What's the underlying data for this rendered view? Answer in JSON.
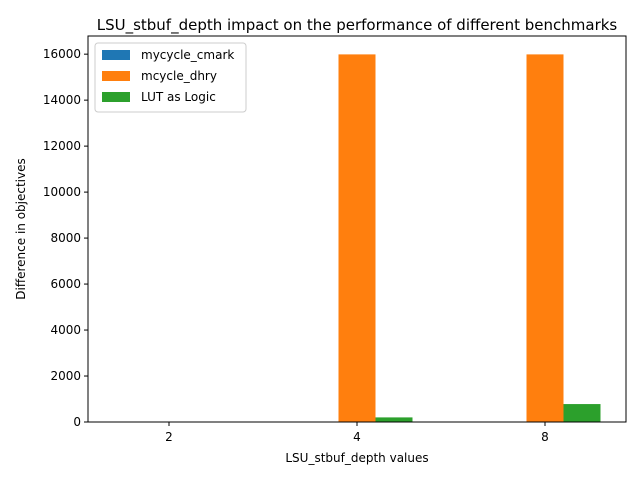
{
  "chart_data": {
    "type": "bar",
    "title": "LSU_stbuf_depth impact on the performance of different benchmarks",
    "xlabel": "LSU_stbuf_depth values",
    "ylabel": "Difference in objectives",
    "categories": [
      "2",
      "4",
      "8"
    ],
    "series": [
      {
        "name": "mycycle_cmark",
        "color": "#1f77b4",
        "values": [
          0,
          0,
          0
        ]
      },
      {
        "name": "mcycle_dhry",
        "color": "#ff7f0e",
        "values": [
          0,
          15990,
          15990
        ]
      },
      {
        "name": "LUT as Logic",
        "color": "#2ca02c",
        "values": [
          0,
          200,
          780
        ]
      }
    ],
    "ylim": [
      0,
      16790
    ],
    "yticks": [
      0,
      2000,
      4000,
      6000,
      8000,
      10000,
      12000,
      14000,
      16000
    ],
    "grid": false,
    "legend_position": "top-left"
  }
}
